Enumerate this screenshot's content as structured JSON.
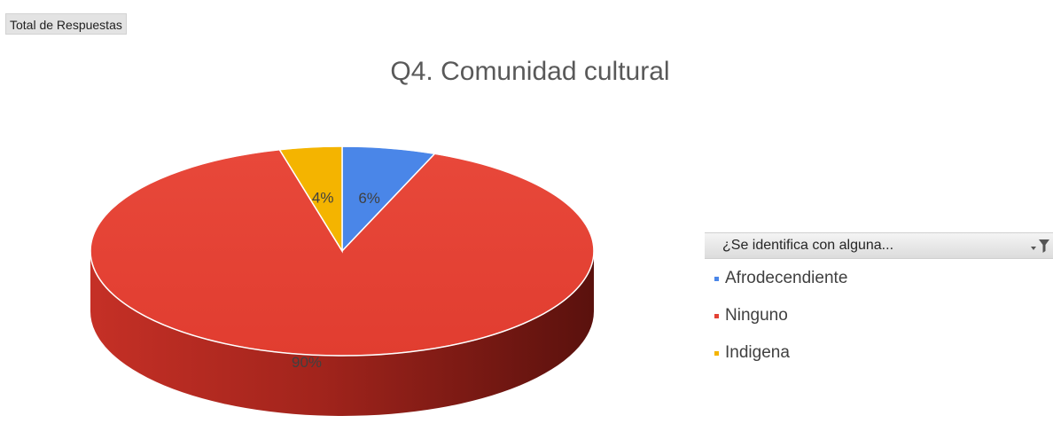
{
  "field_button": {
    "label": "Total de Respuestas"
  },
  "legend": {
    "header_label": "¿Se identifica con alguna...",
    "filter_icon": "filter-dropdown-icon"
  },
  "chart_data": {
    "type": "pie",
    "style": "3d",
    "title": "Q4. Comunidad cultural",
    "legend_title": "¿Se identifica con alguna...",
    "legend_placement": "right",
    "start_angle": 0,
    "slices": [
      {
        "name": "Afrodecendiente",
        "value": 6,
        "label": "6%",
        "color": "#4a86e8"
      },
      {
        "name": "Ninguno",
        "value": 90,
        "label": "90%",
        "color": "#e34133"
      },
      {
        "name": "Indigena",
        "value": 4,
        "label": "4%",
        "color": "#f4b400"
      }
    ]
  }
}
